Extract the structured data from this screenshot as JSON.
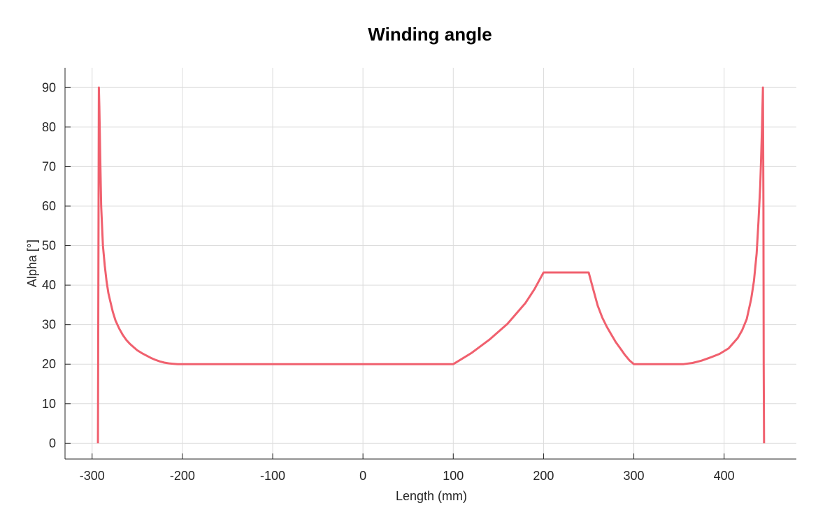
{
  "chart_data": {
    "type": "line",
    "title": "Winding angle",
    "xlabel": "Length (mm)",
    "ylabel": "Alpha [°]",
    "xlim": [
      -330,
      480
    ],
    "ylim": [
      -4,
      95
    ],
    "xticks": [
      -300,
      -200,
      -100,
      0,
      100,
      200,
      300,
      400
    ],
    "yticks": [
      0,
      10,
      20,
      30,
      40,
      50,
      60,
      70,
      80,
      90
    ],
    "grid": true,
    "colors": {
      "line": "#f0606e"
    },
    "series": [
      {
        "x": [
          -293.5,
          -292.5,
          -292,
          -291,
          -290,
          -288,
          -286,
          -284,
          -282,
          -280,
          -277,
          -274,
          -270,
          -266,
          -262,
          -258,
          -254,
          -250,
          -245,
          -240,
          -235,
          -230,
          -225,
          -220,
          -215,
          -210,
          -205,
          -200,
          -150,
          -100,
          -50,
          0,
          50,
          100,
          120,
          140,
          160,
          180,
          190,
          200,
          250,
          255,
          260,
          265,
          270,
          275,
          280,
          285,
          290,
          295,
          300,
          320,
          355,
          365,
          375,
          385,
          395,
          405,
          415,
          420,
          425,
          430,
          433,
          436,
          438,
          440,
          441,
          442,
          443,
          443.5,
          443.8,
          444.2
        ],
        "y": [
          0,
          90,
          85,
          72,
          60,
          50,
          45,
          41,
          38,
          36,
          33.2,
          31,
          29,
          27.4,
          26.1,
          25.1,
          24.3,
          23.5,
          22.8,
          22.2,
          21.6,
          21.1,
          20.7,
          20.4,
          20.2,
          20.1,
          20,
          20,
          20,
          20,
          20,
          20,
          20,
          20,
          22.8,
          26.2,
          30.2,
          35.5,
          39,
          43.2,
          43.2,
          39,
          34.8,
          31.8,
          29.5,
          27.5,
          25.6,
          24,
          22.4,
          21,
          20,
          20,
          20,
          20.3,
          20.9,
          21.7,
          22.6,
          24,
          26.6,
          28.6,
          31.4,
          36.5,
          41,
          48,
          56,
          65,
          72,
          80,
          90,
          60,
          20,
          0
        ]
      }
    ]
  }
}
